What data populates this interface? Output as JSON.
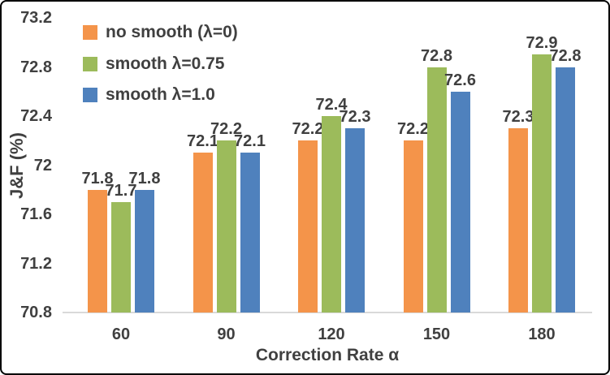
{
  "chart_data": {
    "type": "bar",
    "categories": [
      "60",
      "90",
      "120",
      "150",
      "180"
    ],
    "series": [
      {
        "name": "no smooth (λ=0)",
        "color": "#F4944A",
        "values": [
          71.8,
          72.1,
          72.2,
          72.2,
          72.3
        ]
      },
      {
        "name": "smooth λ=0.75",
        "color": "#9CBB5B",
        "values": [
          71.7,
          72.2,
          72.4,
          72.8,
          72.9
        ]
      },
      {
        "name": "smooth λ=1.0",
        "color": "#4F81BD",
        "values": [
          71.8,
          72.1,
          72.3,
          72.6,
          72.8
        ]
      }
    ],
    "xlabel": "Correction Rate α",
    "ylabel": "J&F (%)",
    "ylim": [
      70.8,
      73.2
    ],
    "ytick_labels": [
      "73.2",
      "72.8",
      "72.4",
      "72",
      "71.6",
      "71.2",
      "70.8"
    ],
    "grid": false,
    "legend_position": "top-left",
    "data_labels": true,
    "text_color": "#404040",
    "axis_line_color": "#D9D9D9",
    "border_color": "#000000",
    "background": "#FFFFFF"
  }
}
